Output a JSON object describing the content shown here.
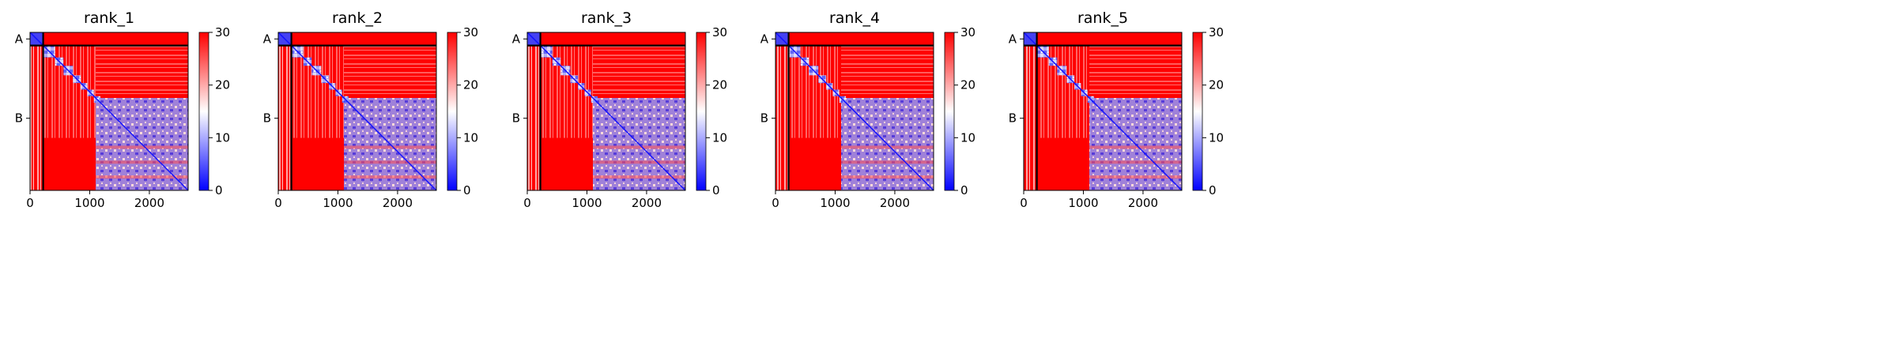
{
  "chart_data": [
    {
      "type": "heatmap",
      "title": "rank_1",
      "x_ticks": [
        0,
        1000,
        2000
      ],
      "x_range": [
        0,
        2650
      ],
      "y_tick_labels": [
        {
          "label": "A",
          "position": 110
        },
        {
          "label": "B",
          "position": 1440
        }
      ],
      "chain_boundary": 220,
      "colorbar": {
        "range": [
          0,
          30
        ],
        "ticks": [
          0,
          10,
          20,
          30
        ],
        "colors": [
          "#0000ff",
          "#ffffff",
          "#ff0000"
        ]
      },
      "low_error_blocks": [
        [
          0,
          220
        ],
        [
          220,
          420
        ],
        [
          420,
          560
        ],
        [
          560,
          720
        ],
        [
          720,
          850
        ],
        [
          850,
          960
        ],
        [
          960,
          1070
        ],
        [
          1070,
          1180
        ],
        [
          1100,
          2650
        ]
      ]
    },
    {
      "type": "heatmap",
      "title": "rank_2",
      "x_ticks": [
        0,
        1000,
        2000
      ],
      "x_range": [
        0,
        2650
      ],
      "y_tick_labels": [
        {
          "label": "A",
          "position": 110
        },
        {
          "label": "B",
          "position": 1440
        }
      ],
      "chain_boundary": 220,
      "colorbar": {
        "range": [
          0,
          30
        ],
        "ticks": [
          0,
          10,
          20,
          30
        ],
        "colors": [
          "#0000ff",
          "#ffffff",
          "#ff0000"
        ]
      },
      "low_error_blocks": [
        [
          0,
          220
        ],
        [
          220,
          420
        ],
        [
          420,
          560
        ],
        [
          560,
          720
        ],
        [
          720,
          850
        ],
        [
          850,
          960
        ],
        [
          960,
          1070
        ],
        [
          1070,
          1180
        ],
        [
          1100,
          2650
        ]
      ]
    },
    {
      "type": "heatmap",
      "title": "rank_3",
      "x_ticks": [
        0,
        1000,
        2000
      ],
      "x_range": [
        0,
        2650
      ],
      "y_tick_labels": [
        {
          "label": "A",
          "position": 110
        },
        {
          "label": "B",
          "position": 1440
        }
      ],
      "chain_boundary": 220,
      "colorbar": {
        "range": [
          0,
          30
        ],
        "ticks": [
          0,
          10,
          20,
          30
        ],
        "colors": [
          "#0000ff",
          "#ffffff",
          "#ff0000"
        ]
      },
      "low_error_blocks": [
        [
          0,
          220
        ],
        [
          220,
          420
        ],
        [
          420,
          560
        ],
        [
          560,
          720
        ],
        [
          720,
          850
        ],
        [
          850,
          960
        ],
        [
          960,
          1070
        ],
        [
          1070,
          1180
        ],
        [
          1100,
          2650
        ]
      ]
    },
    {
      "type": "heatmap",
      "title": "rank_4",
      "x_ticks": [
        0,
        1000,
        2000
      ],
      "x_range": [
        0,
        2650
      ],
      "y_tick_labels": [
        {
          "label": "A",
          "position": 110
        },
        {
          "label": "B",
          "position": 1440
        }
      ],
      "chain_boundary": 220,
      "colorbar": {
        "range": [
          0,
          30
        ],
        "ticks": [
          0,
          10,
          20,
          30
        ],
        "colors": [
          "#0000ff",
          "#ffffff",
          "#ff0000"
        ]
      },
      "low_error_blocks": [
        [
          0,
          220
        ],
        [
          220,
          420
        ],
        [
          420,
          560
        ],
        [
          560,
          720
        ],
        [
          720,
          850
        ],
        [
          850,
          960
        ],
        [
          960,
          1070
        ],
        [
          1070,
          1180
        ],
        [
          1100,
          2650
        ]
      ]
    },
    {
      "type": "heatmap",
      "title": "rank_5",
      "x_ticks": [
        0,
        1000,
        2000
      ],
      "x_range": [
        0,
        2650
      ],
      "y_tick_labels": [
        {
          "label": "A",
          "position": 110
        },
        {
          "label": "B",
          "position": 1440
        }
      ],
      "chain_boundary": 220,
      "colorbar": {
        "range": [
          0,
          30
        ],
        "ticks": [
          0,
          10,
          20,
          30
        ],
        "colors": [
          "#0000ff",
          "#ffffff",
          "#ff0000"
        ]
      },
      "low_error_blocks": [
        [
          0,
          220
        ],
        [
          220,
          420
        ],
        [
          420,
          560
        ],
        [
          560,
          720
        ],
        [
          720,
          850
        ],
        [
          850,
          960
        ],
        [
          960,
          1070
        ],
        [
          1070,
          1180
        ],
        [
          1100,
          2650
        ]
      ]
    }
  ]
}
